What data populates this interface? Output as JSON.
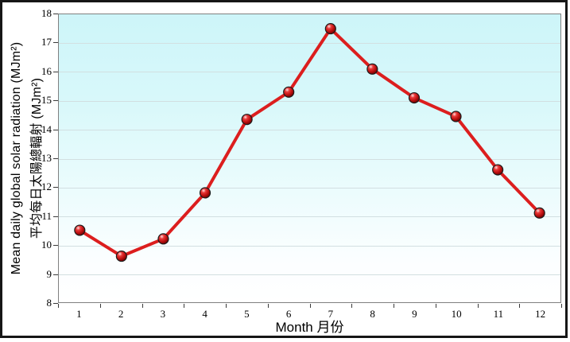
{
  "chart_data": {
    "type": "line",
    "title": "",
    "categories": [
      "1",
      "2",
      "3",
      "4",
      "5",
      "6",
      "7",
      "8",
      "9",
      "10",
      "11",
      "12"
    ],
    "values": [
      10.5,
      9.6,
      10.2,
      11.8,
      14.35,
      15.3,
      17.5,
      16.1,
      15.1,
      14.45,
      12.6,
      11.1
    ],
    "series": [
      {
        "name": "Mean daily global solar radiation",
        "values": [
          10.5,
          9.6,
          10.2,
          11.8,
          14.35,
          15.3,
          17.5,
          16.1,
          15.1,
          14.45,
          12.6,
          11.1
        ]
      }
    ],
    "xlabel": "Month 月份",
    "ylabel_line1": "Mean daily global solar radiation (MJm²)",
    "ylabel_line2": "平均每日太陽總輻射 (MJm²)",
    "ylim": [
      8,
      18
    ],
    "yticks": [
      8,
      9,
      10,
      11,
      12,
      13,
      14,
      15,
      16,
      17,
      18
    ],
    "xticks": [
      "1",
      "2",
      "3",
      "4",
      "5",
      "6",
      "7",
      "8",
      "9",
      "10",
      "11",
      "12"
    ],
    "grid": "horizontal",
    "legend": "none",
    "marker_style": "glossy-red-sphere",
    "colors": {
      "line": "#dc1e1e",
      "marker_highlight": "#ffe2e2",
      "marker_mid": "#e93a3a",
      "marker_deep": "#c01212",
      "marker_dark": "#6d0000",
      "marker_outline": "#1c1c1c",
      "plot_bg_top": "#cdf5f9",
      "plot_bg_bottom": "#ffffff",
      "gridline": "#d2dfe1",
      "plot_border": "#808080",
      "frame_border": "#161616",
      "text": "#000000"
    }
  }
}
